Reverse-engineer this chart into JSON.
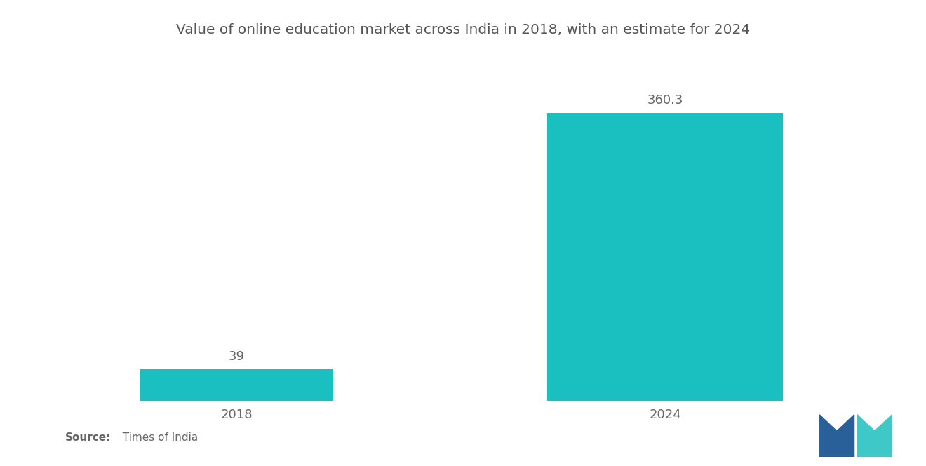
{
  "title": "Value of online education market across India in 2018, with an estimate for 2024",
  "categories": [
    "2018",
    "2024"
  ],
  "values": [
    39,
    360.3
  ],
  "bar_color": "#1ABFBF",
  "label_color": "#666666",
  "title_color": "#555555",
  "background_color": "#ffffff",
  "source_bold": "Source:",
  "source_normal": "  Times of India",
  "value_labels": [
    "39",
    "360.3"
  ],
  "ylim": [
    0,
    420
  ],
  "title_fontsize": 14.5,
  "label_fontsize": 13,
  "tick_fontsize": 13,
  "logo_blue": "#2A6099",
  "logo_teal": "#3EC8C8"
}
